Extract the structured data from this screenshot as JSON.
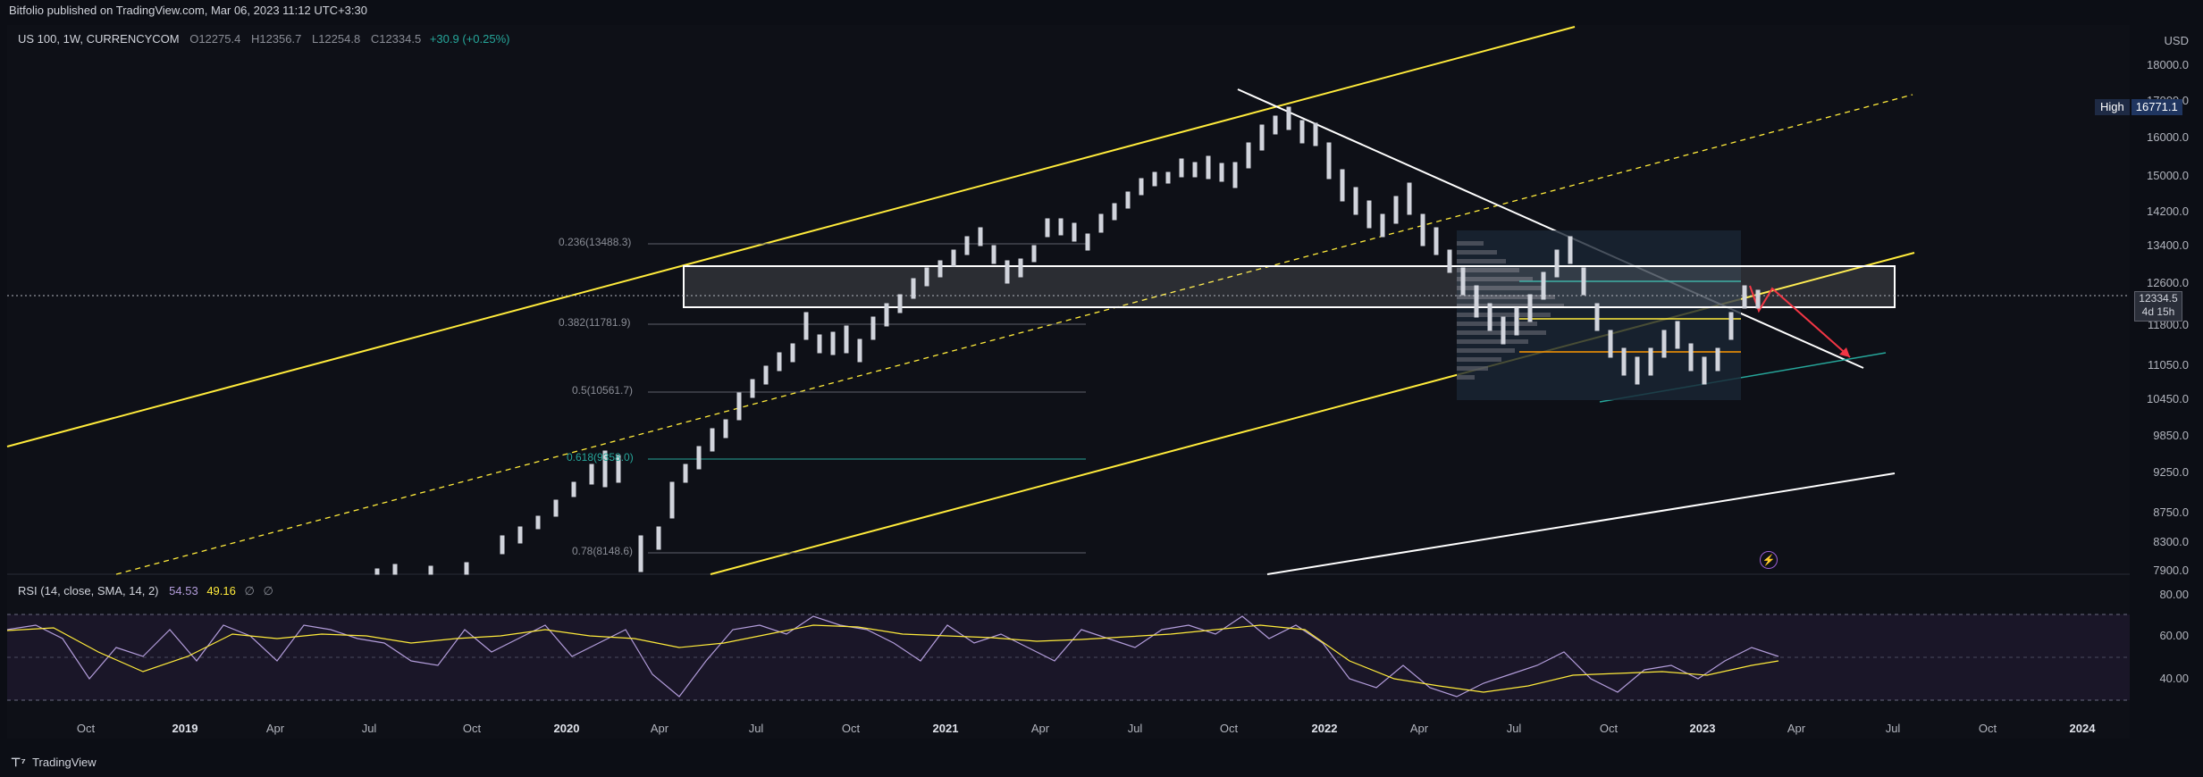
{
  "header": {
    "publisher": "Bitfolio published on TradingView.com, Mar 06, 2023 11:12 UTC+3:30"
  },
  "legend": {
    "symbol": "US 100, 1W, CURRENCYCOM",
    "open": "O12275.4",
    "high": "H12356.7",
    "low": "L12254.8",
    "close": "C12334.5",
    "change": "+30.9 (+0.25%)"
  },
  "price_scale": {
    "currency": "USD",
    "ticks": [
      "18000.0",
      "17000.0",
      "16000.0",
      "15000.0",
      "14200.0",
      "13400.0",
      "12600.0",
      "11800.0",
      "11050.0",
      "10450.0",
      "9850.0",
      "9250.0",
      "8750.0",
      "8300.0",
      "7900.0"
    ]
  },
  "high_badge": {
    "label": "High",
    "value": "16771.1"
  },
  "last_price": {
    "value": "12334.5",
    "countdown": "4d 15h"
  },
  "fib_levels": [
    {
      "label": "0.236(13488.3)"
    },
    {
      "label": "0.382(11781.9)"
    },
    {
      "label": "0.5(10561.7)"
    },
    {
      "label": "0.618(9358.0)"
    },
    {
      "label": "0.78(8148.6)"
    }
  ],
  "rsi": {
    "title": "RSI (14, close, SMA, 14, 2)",
    "value": "54.53",
    "sma": "49.16",
    "extra1": "∅",
    "extra2": "∅",
    "ticks": [
      "80.00",
      "60.00",
      "40.00"
    ]
  },
  "time_axis": [
    {
      "label": "Oct",
      "bold": false
    },
    {
      "label": "2019",
      "bold": true
    },
    {
      "label": "Apr",
      "bold": false
    },
    {
      "label": "Jul",
      "bold": false
    },
    {
      "label": "Oct",
      "bold": false
    },
    {
      "label": "2020",
      "bold": true
    },
    {
      "label": "Apr",
      "bold": false
    },
    {
      "label": "Jul",
      "bold": false
    },
    {
      "label": "Oct",
      "bold": false
    },
    {
      "label": "2021",
      "bold": true
    },
    {
      "label": "Apr",
      "bold": false
    },
    {
      "label": "Jul",
      "bold": false
    },
    {
      "label": "Oct",
      "bold": false
    },
    {
      "label": "2022",
      "bold": true
    },
    {
      "label": "Apr",
      "bold": false
    },
    {
      "label": "Jul",
      "bold": false
    },
    {
      "label": "Oct",
      "bold": false
    },
    {
      "label": "2023",
      "bold": true
    },
    {
      "label": "Apr",
      "bold": false
    },
    {
      "label": "Jul",
      "bold": false
    },
    {
      "label": "Oct",
      "bold": false
    },
    {
      "label": "2024",
      "bold": true
    }
  ],
  "footer": {
    "brand": "TradingView"
  },
  "colors": {
    "accent_yellow": "#ffeb3b",
    "teal": "#26a69a",
    "red": "#f23645",
    "rsi_line": "#b39ddb"
  }
}
